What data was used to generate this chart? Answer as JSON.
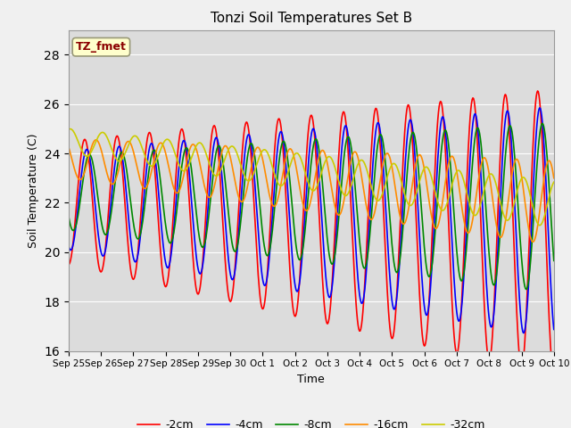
{
  "title": "Tonzi Soil Temperatures Set B",
  "xlabel": "Time",
  "ylabel": "Soil Temperature (C)",
  "ylim": [
    16,
    29
  ],
  "yticks": [
    16,
    18,
    20,
    22,
    24,
    26,
    28
  ],
  "annotation": "TZ_fmet",
  "annotation_color": "#8B0000",
  "annotation_bg": "#FFFFCC",
  "fig_bg": "#F0F0F0",
  "plot_bg": "#DCDCDC",
  "colors": {
    "-2cm": "#FF0000",
    "-4cm": "#0000FF",
    "-8cm": "#008800",
    "-16cm": "#FF8C00",
    "-32cm": "#CCCC00"
  },
  "x_tick_labels": [
    "Sep 25",
    "Sep 26",
    "Sep 27",
    "Sep 28",
    "Sep 29",
    "Sep 30",
    "Oct 1",
    "Oct 2",
    "Oct 3",
    "Oct 4",
    "Oct 5",
    "Oct 6",
    "Oct 7",
    "Oct 8",
    "Oct 9",
    "Oct 10"
  ],
  "line_width": 1.2
}
